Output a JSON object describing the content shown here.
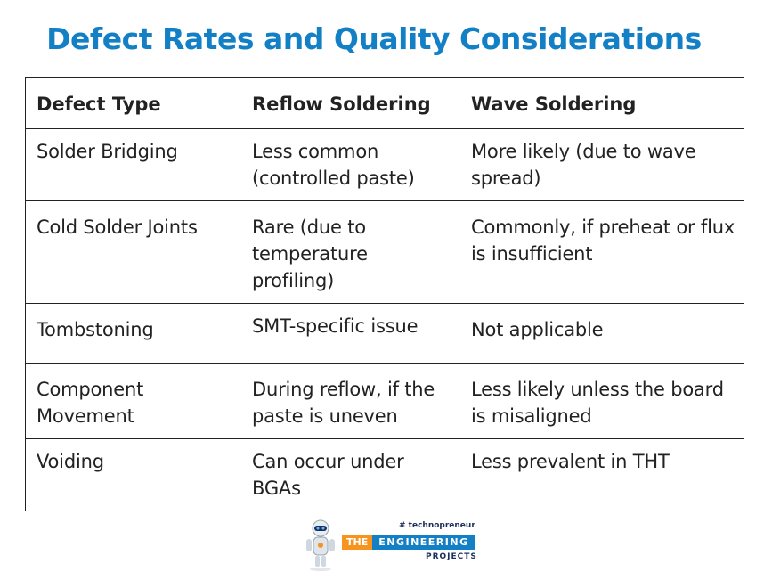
{
  "title": "Defect Rates and Quality Considerations",
  "table": {
    "headers": [
      "Defect Type",
      "Reflow Soldering",
      "Wave Soldering"
    ],
    "rows": [
      [
        "Solder Bridging",
        "Less common (controlled paste)",
        "More likely (due to wave spread)"
      ],
      [
        "Cold Solder Joints",
        "Rare (due to temperature profiling)",
        "Commonly, if preheat or flux is insufficient"
      ],
      [
        "Tombstoning",
        "SMT-specific issue",
        "Not applicable"
      ],
      [
        "Component Movement",
        "During reflow, if the paste is uneven",
        "Less likely unless the board is misaligned"
      ],
      [
        "Voiding",
        "Can occur under BGAs",
        "Less prevalent in THT"
      ]
    ]
  },
  "logo": {
    "hashtag": "# technopreneur",
    "the": "THE",
    "engineering": "ENGINEERING",
    "projects": "PROJECTS",
    "icon": "robot-mascot-icon",
    "colors": {
      "orange": "#f7941d",
      "blue": "#1380c6",
      "navy": "#1c2f5e"
    }
  }
}
